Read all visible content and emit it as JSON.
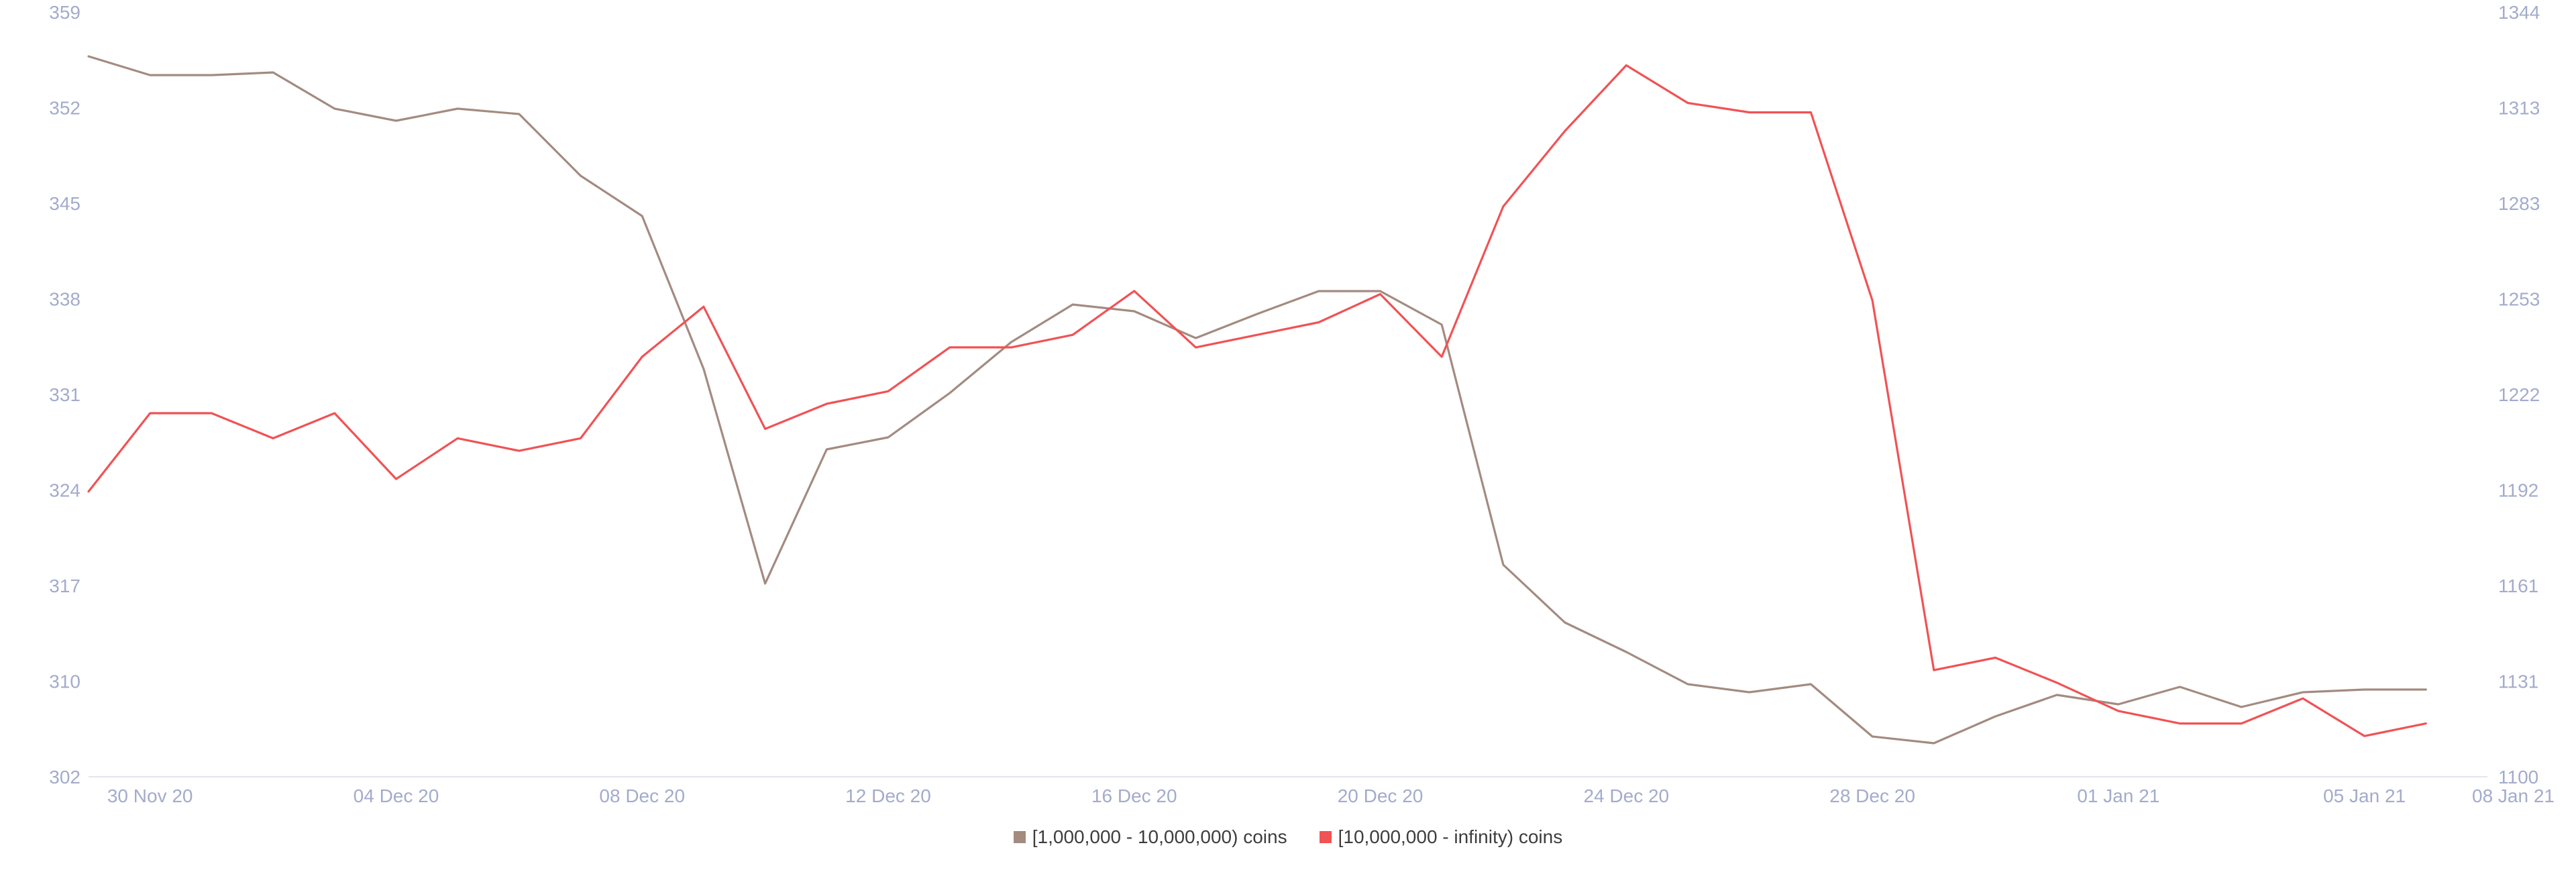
{
  "chart_data": {
    "type": "line",
    "title": "",
    "xlabel": "",
    "ylabel": "",
    "x_tick_labels": [
      "30 Nov 20",
      "04 Dec 20",
      "08 Dec 20",
      "12 Dec 20",
      "16 Dec 20",
      "20 Dec 20",
      "24 Dec 20",
      "28 Dec 20",
      "01 Jan 21",
      "05 Jan 21",
      "08 Jan 21"
    ],
    "y_left_ticks": [
      "302",
      "310",
      "317",
      "324",
      "331",
      "338",
      "345",
      "352",
      "359"
    ],
    "y_right_ticks": [
      "1100",
      "1131",
      "1161",
      "1192",
      "1222",
      "1253",
      "1283",
      "1313",
      "1344"
    ],
    "y_left_range": [
      302,
      359
    ],
    "y_right_range": [
      1100,
      1344
    ],
    "x_dates": [
      "29 Nov 20",
      "30 Nov 20",
      "01 Dec 20",
      "02 Dec 20",
      "03 Dec 20",
      "04 Dec 20",
      "05 Dec 20",
      "06 Dec 20",
      "07 Dec 20",
      "08 Dec 20",
      "09 Dec 20",
      "10 Dec 20",
      "11 Dec 20",
      "12 Dec 20",
      "13 Dec 20",
      "14 Dec 20",
      "15 Dec 20",
      "16 Dec 20",
      "17 Dec 20",
      "18 Dec 20",
      "19 Dec 20",
      "20 Dec 20",
      "21 Dec 20",
      "22 Dec 20",
      "23 Dec 20",
      "24 Dec 20",
      "25 Dec 20",
      "26 Dec 20",
      "27 Dec 20",
      "28 Dec 20",
      "29 Dec 20",
      "30 Dec 20",
      "31 Dec 20",
      "01 Jan 21",
      "02 Jan 21",
      "03 Jan 21",
      "04 Jan 21",
      "05 Jan 21",
      "06 Jan 21",
      "07 Jan 21"
    ],
    "series": [
      {
        "name": "[1,000,000 - 10,000,000) coins",
        "axis": "left",
        "color": "#a38b80",
        "values": [
          355.7,
          354.3,
          354.3,
          354.5,
          351.8,
          350.9,
          351.8,
          351.4,
          346.8,
          343.8,
          332.4,
          316.4,
          326.4,
          327.3,
          330.6,
          334.4,
          337.2,
          336.7,
          334.7,
          336.5,
          338.2,
          338.2,
          335.7,
          317.8,
          313.5,
          311.3,
          308.9,
          308.3,
          308.9,
          305.0,
          304.5,
          306.5,
          308.1,
          307.4,
          308.7,
          307.2,
          308.3,
          308.5,
          308.5,
          null
        ]
      },
      {
        "name": "[10,000,000 - infinity) coins",
        "axis": "right",
        "color": "#f15254",
        "values": [
          1191,
          1216,
          1216,
          1208,
          1216,
          1195,
          1208,
          1204,
          1208,
          1234,
          1250,
          1211,
          1219,
          1223,
          1237,
          1237,
          1241,
          1255,
          1237,
          1241,
          1245,
          1254,
          1234,
          1282,
          1306,
          1327,
          1315,
          1312,
          1312,
          1252,
          1134,
          1138,
          1130,
          1121,
          1117,
          1117,
          1125,
          1113,
          1117,
          null
        ]
      }
    ],
    "legend_position": "bottom-center",
    "grid": false
  }
}
